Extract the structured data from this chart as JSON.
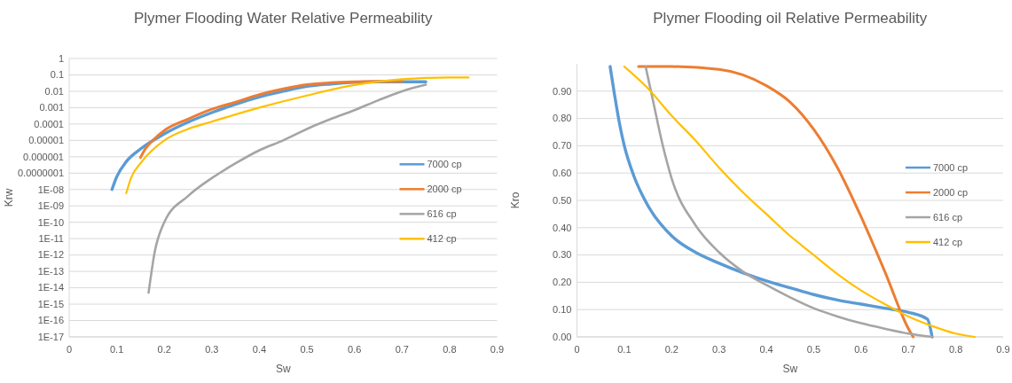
{
  "chart_data": [
    {
      "type": "line",
      "title": "Plymer Flooding Water Relative Permeability",
      "xlabel": "Sw",
      "ylabel": "Krw",
      "log": "y",
      "grid": "y",
      "legend": "right",
      "xlim": [
        0,
        0.9
      ],
      "xticks": [
        0,
        0.1,
        0.2,
        0.3,
        0.4,
        0.5,
        0.6,
        0.7,
        0.8,
        0.9
      ],
      "ylim": [
        1e-17,
        1
      ],
      "yticks": [
        {
          "value": 1e-17,
          "label": "1E-17"
        },
        {
          "value": 1e-16,
          "label": "1E-16"
        },
        {
          "value": 1e-15,
          "label": "1E-15"
        },
        {
          "value": 1e-14,
          "label": "1E-14"
        },
        {
          "value": 1e-13,
          "label": "1E-13"
        },
        {
          "value": 1e-12,
          "label": "1E-12"
        },
        {
          "value": 1e-11,
          "label": "1E-11"
        },
        {
          "value": 1e-10,
          "label": "1E-10"
        },
        {
          "value": 1e-09,
          "label": "1E-09"
        },
        {
          "value": 1e-08,
          "label": "1E-08"
        },
        {
          "value": 1e-07,
          "label": "0.0000001"
        },
        {
          "value": 1e-06,
          "label": "0.000001"
        },
        {
          "value": 1e-05,
          "label": "0.00001"
        },
        {
          "value": 0.0001,
          "label": "0.0001"
        },
        {
          "value": 0.001,
          "label": "0.001"
        },
        {
          "value": 0.01,
          "label": "0.01"
        },
        {
          "value": 0.1,
          "label": "0.1"
        },
        {
          "value": 1,
          "label": "1"
        }
      ],
      "series": [
        {
          "name": "7000 cp",
          "color": "#5b9bd5",
          "x": [
            0.09,
            0.1,
            0.12,
            0.15,
            0.2,
            0.25,
            0.3,
            0.35,
            0.4,
            0.45,
            0.5,
            0.55,
            0.6,
            0.65,
            0.7,
            0.75
          ],
          "values": [
            1e-08,
            6e-08,
            5e-07,
            3e-06,
            2.5e-05,
            0.00013,
            0.0005,
            0.0016,
            0.0045,
            0.01,
            0.02,
            0.028,
            0.035,
            0.038,
            0.038,
            0.038
          ]
        },
        {
          "name": "2000 cp",
          "color": "#ed7d31",
          "x": [
            0.15,
            0.16,
            0.18,
            0.2,
            0.25,
            0.3,
            0.35,
            0.4,
            0.45,
            0.5,
            0.55,
            0.6,
            0.65,
            0.7
          ],
          "values": [
            9e-07,
            3e-06,
            1.3e-05,
            4e-05,
            0.0002,
            0.0008,
            0.0022,
            0.0063,
            0.014,
            0.025,
            0.033,
            0.038,
            0.04,
            0.04
          ]
        },
        {
          "name": "616 cp",
          "color": "#a5a5a5",
          "x": [
            0.167,
            0.18,
            0.2,
            0.25,
            0.3,
            0.35,
            0.4,
            0.45,
            0.5,
            0.55,
            0.6,
            0.65,
            0.7,
            0.75
          ],
          "values": [
            5e-15,
            1.6e-12,
            1e-10,
            4e-09,
            5e-08,
            4e-07,
            2.5e-06,
            1e-05,
            5e-05,
            0.0002,
            0.0007,
            0.0028,
            0.01,
            0.025
          ]
        },
        {
          "name": "412 cp",
          "color": "#ffc000",
          "x": [
            0.12,
            0.13,
            0.15,
            0.2,
            0.25,
            0.3,
            0.4,
            0.5,
            0.6,
            0.7,
            0.8,
            0.84
          ],
          "values": [
            6e-09,
            5e-08,
            4e-07,
            1e-05,
            5e-05,
            0.00014,
            0.001,
            0.0055,
            0.024,
            0.054,
            0.07,
            0.07
          ]
        }
      ]
    },
    {
      "type": "line",
      "title": "Plymer Flooding oil Relative Permeability",
      "xlabel": "Sw",
      "ylabel": "Kro",
      "grid": "y",
      "legend": "right",
      "xlim": [
        0,
        0.9
      ],
      "xticks": [
        0,
        0.1,
        0.2,
        0.3,
        0.4,
        0.5,
        0.6,
        0.7,
        0.8,
        0.9
      ],
      "ylim": [
        0,
        1
      ],
      "yticks": [
        {
          "value": 0,
          "label": "0.00"
        },
        {
          "value": 0.1,
          "label": "0.10"
        },
        {
          "value": 0.2,
          "label": "0.20"
        },
        {
          "value": 0.3,
          "label": "0.30"
        },
        {
          "value": 0.4,
          "label": "0.40"
        },
        {
          "value": 0.5,
          "label": "0.50"
        },
        {
          "value": 0.6,
          "label": "0.60"
        },
        {
          "value": 0.7,
          "label": "0.70"
        },
        {
          "value": 0.8,
          "label": "0.80"
        },
        {
          "value": 0.9,
          "label": "0.90"
        }
      ],
      "series": [
        {
          "name": "7000 cp",
          "color": "#5b9bd5",
          "x": [
            0.07,
            0.08,
            0.09,
            0.1,
            0.12,
            0.15,
            0.2,
            0.25,
            0.3,
            0.35,
            0.4,
            0.45,
            0.5,
            0.55,
            0.6,
            0.65,
            0.7,
            0.74,
            0.75
          ],
          "values": [
            0.99,
            0.88,
            0.78,
            0.7,
            0.59,
            0.48,
            0.37,
            0.31,
            0.27,
            0.235,
            0.205,
            0.18,
            0.155,
            0.135,
            0.12,
            0.105,
            0.09,
            0.065,
            0
          ]
        },
        {
          "name": "2000 cp",
          "color": "#ed7d31",
          "x": [
            0.13,
            0.2,
            0.3,
            0.35,
            0.4,
            0.45,
            0.5,
            0.55,
            0.6,
            0.65,
            0.7,
            0.71
          ],
          "values": [
            0.99,
            0.99,
            0.98,
            0.96,
            0.92,
            0.86,
            0.76,
            0.62,
            0.44,
            0.24,
            0.03,
            0
          ]
        },
        {
          "name": "616 cp",
          "color": "#a5a5a5",
          "x": [
            0.145,
            0.16,
            0.18,
            0.2,
            0.25,
            0.3,
            0.35,
            0.4,
            0.45,
            0.5,
            0.55,
            0.6,
            0.65,
            0.7,
            0.75
          ],
          "values": [
            0.99,
            0.87,
            0.71,
            0.58,
            0.41,
            0.31,
            0.24,
            0.19,
            0.145,
            0.105,
            0.075,
            0.05,
            0.03,
            0.012,
            0
          ]
        },
        {
          "name": "412 cp",
          "color": "#ffc000",
          "x": [
            0.1,
            0.15,
            0.2,
            0.25,
            0.3,
            0.35,
            0.4,
            0.45,
            0.5,
            0.55,
            0.6,
            0.65,
            0.7,
            0.75,
            0.8,
            0.84
          ],
          "values": [
            0.99,
            0.91,
            0.81,
            0.72,
            0.62,
            0.53,
            0.45,
            0.37,
            0.3,
            0.23,
            0.17,
            0.12,
            0.075,
            0.04,
            0.012,
            0
          ]
        }
      ]
    }
  ]
}
